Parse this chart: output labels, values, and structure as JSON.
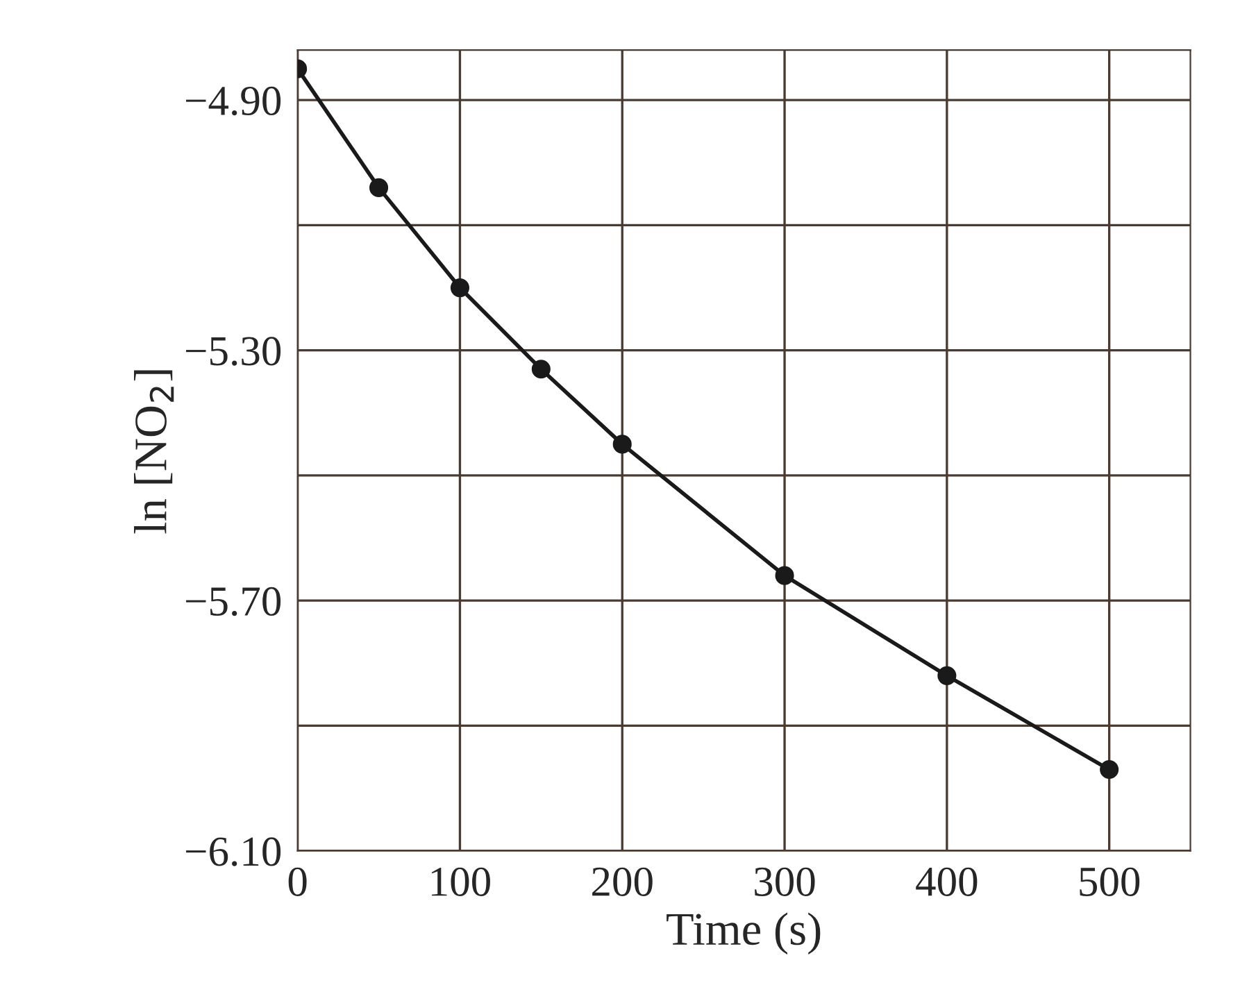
{
  "chart_data": {
    "type": "line",
    "xlabel": "Time (s)",
    "ylabel": "ln [NO$_{2}$]",
    "x": [
      0,
      50,
      100,
      150,
      200,
      300,
      400,
      500
    ],
    "series": [
      {
        "color": "#1a1a1a",
        "values": [
          -4.85,
          -5.04,
          -5.2,
          -5.33,
          -5.45,
          -5.66,
          -5.82,
          -5.97
        ]
      }
    ],
    "xlim": [
      0,
      550
    ],
    "xticks": [
      0,
      100,
      200,
      300,
      400,
      500
    ],
    "ylim": [
      -6.1,
      -4.82
    ],
    "yticks": [
      {
        "value": -6.1,
        "label": "−6.10"
      },
      {
        "value": -5.9,
        "label": null
      },
      {
        "value": -5.7,
        "label": "−5.70"
      },
      {
        "value": -5.5,
        "label": null
      },
      {
        "value": -5.3,
        "label": "−5.30"
      },
      {
        "value": -5.1,
        "label": null
      },
      {
        "value": -4.9,
        "label": "−4.90"
      }
    ],
    "grid": true,
    "marker": "circle",
    "line_style": "solid"
  }
}
